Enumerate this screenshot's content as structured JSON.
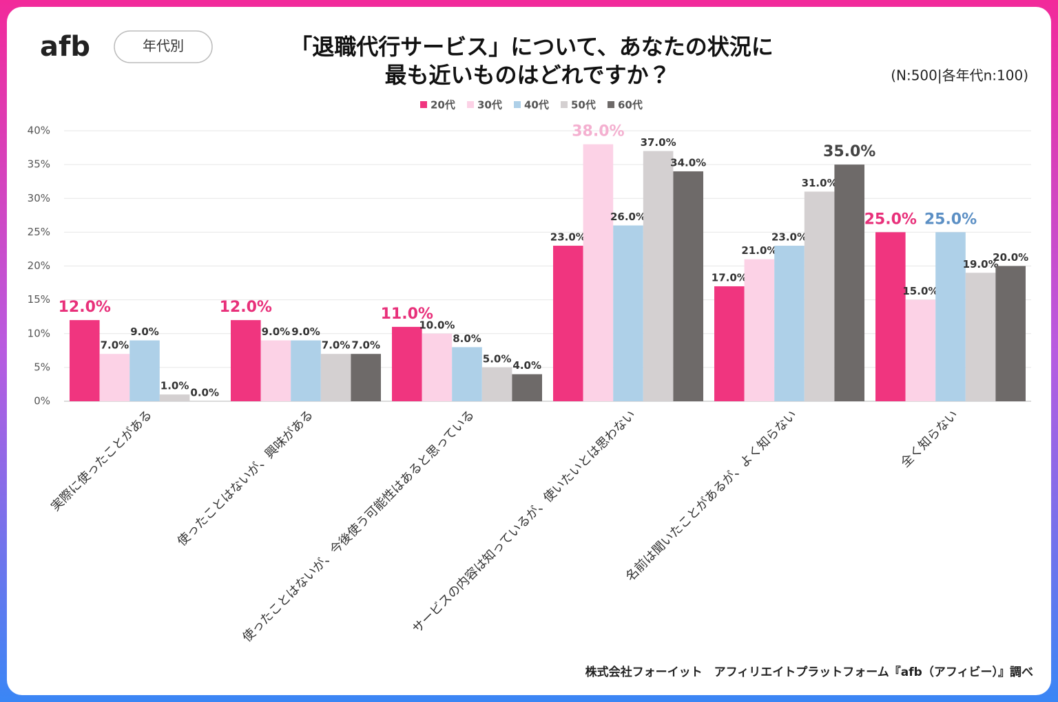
{
  "chart_data": {
    "type": "bar",
    "logo": "afb",
    "badge": "年代別",
    "title": [
      "「退職代行サービス」について、あなたの状況に",
      "最も近いものはどれですか？"
    ],
    "note": "(N:500|各年代n:100)",
    "source": "株式会社フォーイット　アフィリエイトプラットフォーム『afb（アフィビー）』調べ",
    "categories": [
      "実際に使ったことがある",
      "使ったことはないが、興味がある",
      "使ったことはないが、今後使う可能性はあると思っている",
      "サービスの内容は知っているが、使いたいとは思わない",
      "名前は聞いたことがあるが、よく知らない",
      "全く知らない"
    ],
    "series": [
      {
        "name": "20代",
        "color": "#f0357f",
        "label_color": "#e8307a",
        "values": [
          12,
          12,
          11,
          23,
          17,
          25
        ],
        "value_labels": [
          "12.0%",
          "12.0%",
          "11.0%",
          "23.0%",
          "17.0%",
          "25.0%"
        ]
      },
      {
        "name": "30代",
        "color": "#fcd2e6",
        "label_color": "#f4b0d0",
        "values": [
          7,
          9,
          10,
          38,
          21,
          15
        ],
        "value_labels": [
          "7.0%",
          "9.0%",
          "10.0%",
          "38.0%",
          "21.0%",
          "15.0%"
        ]
      },
      {
        "name": "40代",
        "color": "#aed0e8",
        "label_color": "#5b8fc4",
        "values": [
          9,
          9,
          8,
          26,
          23,
          25
        ],
        "value_labels": [
          "9.0%",
          "9.0%",
          "8.0%",
          "26.0%",
          "23.0%",
          "25.0%"
        ]
      },
      {
        "name": "50代",
        "color": "#d4d0d1",
        "label_color": "#888",
        "values": [
          1,
          7,
          5,
          37,
          31,
          19
        ],
        "value_labels": [
          "1.0%",
          "7.0%",
          "5.0%",
          "37.0%",
          "31.0%",
          "19.0%"
        ]
      },
      {
        "name": "60代",
        "color": "#6e6a69",
        "label_color": "#444",
        "values": [
          0,
          7,
          4,
          34,
          35,
          20
        ],
        "value_labels": [
          "0.0%",
          "7.0%",
          "4.0%",
          "34.0%",
          "35.0%",
          "20.0%"
        ]
      }
    ],
    "ylim": [
      0,
      40
    ],
    "yticks": [
      {
        "value": 0,
        "label": "0%"
      },
      {
        "value": 5,
        "label": "5%"
      },
      {
        "value": 10,
        "label": "10%"
      },
      {
        "value": 15,
        "label": "15%"
      },
      {
        "value": 20,
        "label": "20%"
      },
      {
        "value": 25,
        "label": "25%"
      },
      {
        "value": 30,
        "label": "30%"
      },
      {
        "value": 35,
        "label": "35%"
      },
      {
        "value": 40,
        "label": "40%"
      }
    ],
    "grid": true,
    "legend": "top"
  }
}
